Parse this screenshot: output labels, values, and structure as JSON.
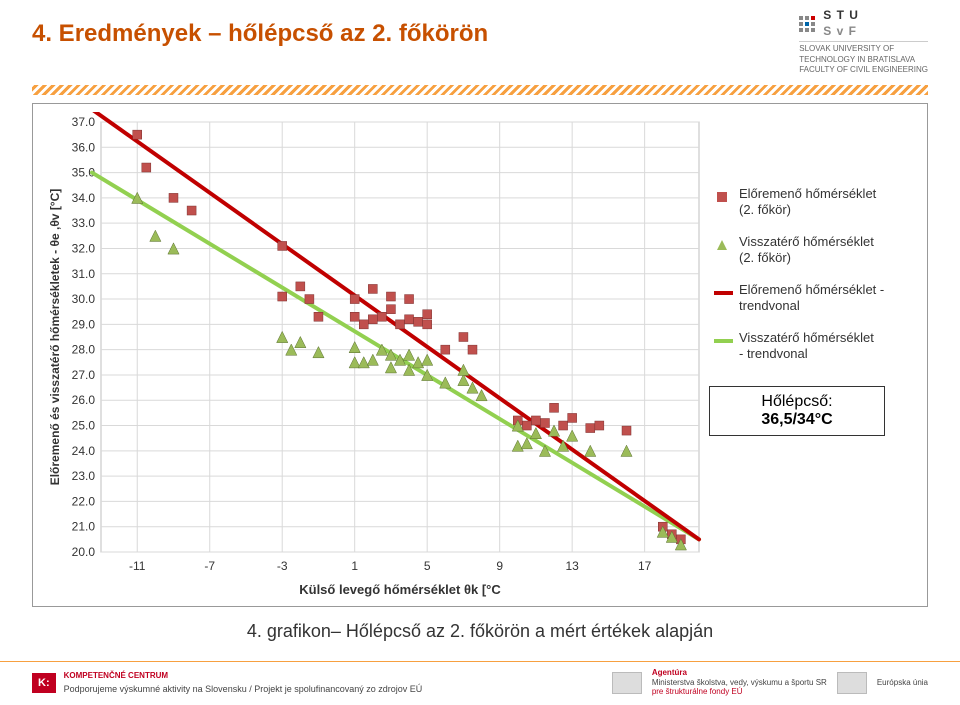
{
  "title": "4. Eredmények – hőlépcső az 2. főkörön",
  "logo": {
    "line1": "S T U",
    "line2": "S v F",
    "subtitle1": "SLOVAK UNIVERSITY OF",
    "subtitle2": "TECHNOLOGY IN BRATISLAVA",
    "subtitle3": "FACULTY OF CIVIL ENGINEERING"
  },
  "chart": {
    "type": "scatter",
    "background_color": "#ffffff",
    "grid_color": "#d9d9d9",
    "plot_border_color": "#bfbfbf",
    "ylabel": "Előremenő és visszatérő  hőmérsékletek - θe ,θv  [°C]",
    "xlabel": "Külső levegő hőmérséklet θk [°C",
    "xlim": [
      -13,
      20
    ],
    "ylim": [
      20,
      37
    ],
    "yticks": [
      20.0,
      21.0,
      22.0,
      23.0,
      24.0,
      25.0,
      26.0,
      27.0,
      28.0,
      29.0,
      30.0,
      31.0,
      32.0,
      33.0,
      34.0,
      35.0,
      36.0,
      37.0
    ],
    "ytick_labels": [
      "20.0",
      "21.0",
      "22.0",
      "23.0",
      "24.0",
      "25.0",
      "26.0",
      "27.0",
      "28.0",
      "29.0",
      "30.0",
      "31.0",
      "32.0",
      "33.0",
      "34.0",
      "35.0",
      "36.0",
      "37.0"
    ],
    "xticks": [
      -11,
      -7,
      -3,
      1,
      5,
      9,
      13,
      17
    ],
    "axis_fontsize": 12,
    "marker_size": 9,
    "series_forward": {
      "color": "#c0504d",
      "marker": "square",
      "points": [
        [
          -11,
          36.5
        ],
        [
          -10.5,
          35.2
        ],
        [
          -9,
          34.0
        ],
        [
          -8,
          33.5
        ],
        [
          -3,
          32.1
        ],
        [
          -3,
          30.1
        ],
        [
          -2,
          30.5
        ],
        [
          -1.5,
          30.0
        ],
        [
          -1,
          29.3
        ],
        [
          1,
          29.3
        ],
        [
          1,
          30.0
        ],
        [
          1.5,
          29.0
        ],
        [
          2,
          29.2
        ],
        [
          2,
          30.4
        ],
        [
          2.5,
          29.3
        ],
        [
          3,
          29.6
        ],
        [
          3,
          30.1
        ],
        [
          3.5,
          29.0
        ],
        [
          4,
          30.0
        ],
        [
          4,
          29.2
        ],
        [
          4.5,
          29.1
        ],
        [
          5,
          29.4
        ],
        [
          5,
          29.0
        ],
        [
          6,
          28.0
        ],
        [
          7,
          28.5
        ],
        [
          7.5,
          28.0
        ],
        [
          10,
          25.2
        ],
        [
          10.5,
          25.0
        ],
        [
          11,
          25.2
        ],
        [
          11.5,
          25.1
        ],
        [
          12,
          25.7
        ],
        [
          12.5,
          25.0
        ],
        [
          13,
          25.3
        ],
        [
          14,
          24.9
        ],
        [
          14.5,
          25.0
        ],
        [
          16,
          24.8
        ],
        [
          18,
          21.0
        ],
        [
          18.5,
          20.7
        ],
        [
          19,
          20.5
        ]
      ]
    },
    "series_return": {
      "color": "#9bbb59",
      "marker": "triangle",
      "points": [
        [
          -11,
          34.0
        ],
        [
          -10,
          32.5
        ],
        [
          -9,
          32.0
        ],
        [
          -3,
          28.5
        ],
        [
          -2.5,
          28.0
        ],
        [
          -2,
          28.3
        ],
        [
          -1,
          27.9
        ],
        [
          1,
          28.1
        ],
        [
          1,
          27.5
        ],
        [
          1.5,
          27.5
        ],
        [
          2,
          27.6
        ],
        [
          2.5,
          28.0
        ],
        [
          3,
          27.8
        ],
        [
          3,
          27.3
        ],
        [
          3.5,
          27.6
        ],
        [
          4,
          27.8
        ],
        [
          4,
          27.2
        ],
        [
          4.5,
          27.5
        ],
        [
          5,
          27.6
        ],
        [
          5,
          27.0
        ],
        [
          6,
          26.7
        ],
        [
          7,
          26.8
        ],
        [
          7.5,
          26.5
        ],
        [
          7,
          27.2
        ],
        [
          8,
          26.2
        ],
        [
          10,
          25.0
        ],
        [
          10,
          24.2
        ],
        [
          10.5,
          24.3
        ],
        [
          11,
          24.7
        ],
        [
          11.5,
          24.0
        ],
        [
          12,
          24.8
        ],
        [
          12.5,
          24.2
        ],
        [
          13,
          24.6
        ],
        [
          14,
          24.0
        ],
        [
          16,
          24.0
        ],
        [
          18,
          20.8
        ],
        [
          18.5,
          20.6
        ],
        [
          19,
          20.3
        ]
      ]
    },
    "trend_forward": {
      "color": "#c00000",
      "width": 4,
      "p1": [
        -13.5,
        37.5
      ],
      "p2": [
        20,
        20.5
      ]
    },
    "trend_return": {
      "color": "#92d050",
      "width": 4,
      "p1": [
        -13.5,
        35.0
      ],
      "p2": [
        20,
        20.5
      ]
    },
    "legend": {
      "items": [
        {
          "type": "square",
          "color": "#c0504d",
          "label": "Előremenő hőmérséklet (2. főkör)"
        },
        {
          "type": "triangle",
          "color": "#9bbb59",
          "label": "Visszatérő hőmérséklet (2. főkör)"
        },
        {
          "type": "line",
          "color": "#c00000",
          "label": "Előremenő hőmérséklet - trendvonal"
        },
        {
          "type": "line",
          "color": "#92d050",
          "label": "Visszatérő hőmérséklet - trendvonal"
        }
      ]
    },
    "annotation": {
      "line1": "Hőlépcső:",
      "line2": "36,5/34°C"
    }
  },
  "caption": "4. grafikon– Hőlépcső az 2. főkörön a mért értékek alapján",
  "footer": {
    "left_small1": "KOMPETENČNÉ CENTRUM",
    "left_small2": "",
    "support": "Podporujeme výskumné aktivity na Slovensku / Projekt je spolufinancovaný zo zdrojov EÚ",
    "right1": "Agentúra",
    "right2": "Ministerstva školstva, vedy, výskumu a športu SR",
    "right3": "pre štrukturálne fondy EÚ",
    "eu": "Európska únia"
  }
}
